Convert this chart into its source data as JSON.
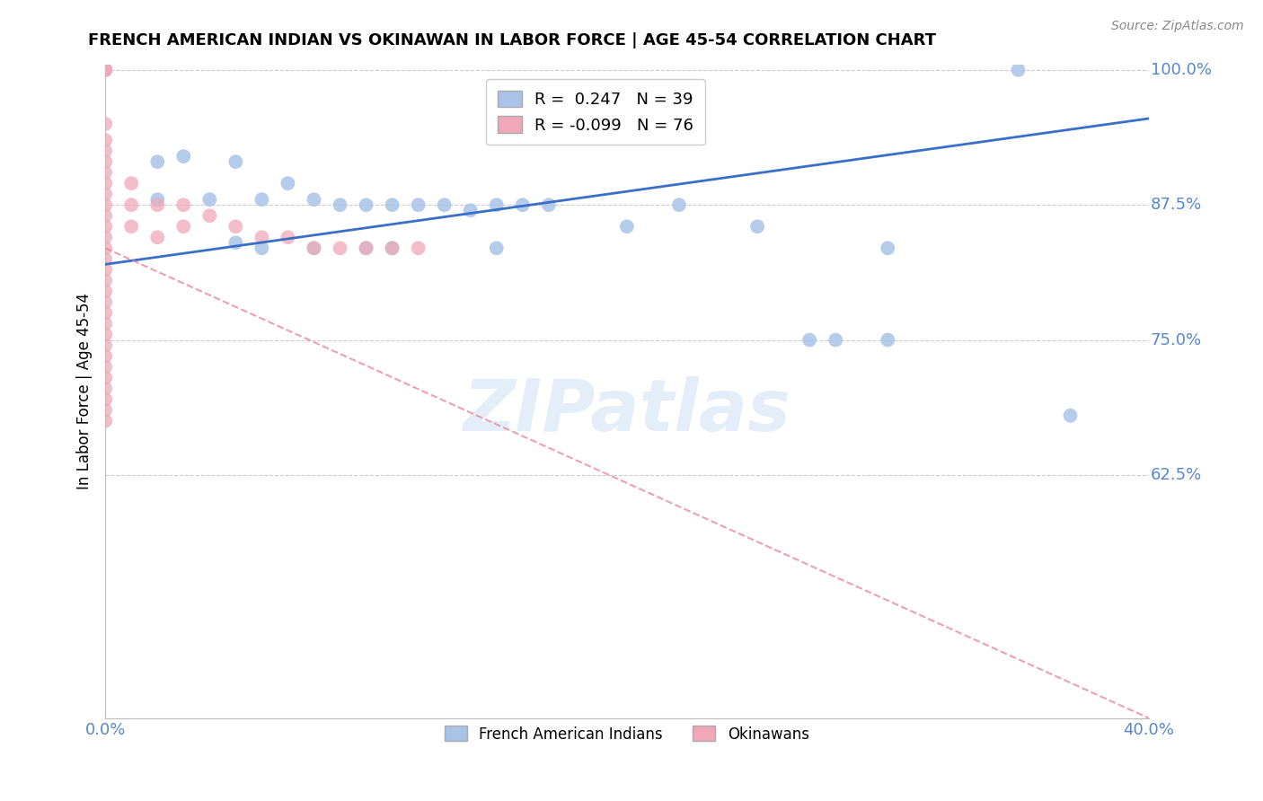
{
  "title": "FRENCH AMERICAN INDIAN VS OKINAWAN IN LABOR FORCE | AGE 45-54 CORRELATION CHART",
  "source": "Source: ZipAtlas.com",
  "ylabel": "In Labor Force | Age 45-54",
  "xlim": [
    0.0,
    0.4
  ],
  "ylim": [
    0.4,
    1.005
  ],
  "xticks": [
    0.0,
    0.05,
    0.1,
    0.15,
    0.2,
    0.25,
    0.3,
    0.35,
    0.4
  ],
  "xtick_labels": [
    "0.0%",
    "",
    "",
    "",
    "",
    "",
    "",
    "",
    "40.0%"
  ],
  "yticks": [
    0.625,
    0.75,
    0.875,
    1.0
  ],
  "ytick_labels": [
    "62.5%",
    "75.0%",
    "87.5%",
    "100.0%"
  ],
  "blue_R": 0.247,
  "blue_N": 39,
  "pink_R": -0.099,
  "pink_N": 76,
  "blue_color": "#aac4e8",
  "pink_color": "#f0a8b8",
  "blue_line_color": "#3a6fc8",
  "pink_line_color": "#e8809a",
  "grid_color": "#cccccc",
  "right_tick_color": "#5588cc",
  "watermark": "ZIPatlas",
  "blue_scatter_x": [
    0.0,
    0.02,
    0.02,
    0.03,
    0.04,
    0.05,
    0.05,
    0.06,
    0.06,
    0.07,
    0.08,
    0.08,
    0.09,
    0.1,
    0.1,
    0.11,
    0.11,
    0.12,
    0.13,
    0.14,
    0.15,
    0.15,
    0.16,
    0.17,
    0.2,
    0.22,
    0.25,
    0.27,
    0.28,
    0.3,
    0.3,
    0.35,
    0.37
  ],
  "blue_scatter_y": [
    1.0,
    0.915,
    0.88,
    0.92,
    0.88,
    0.915,
    0.84,
    0.88,
    0.835,
    0.895,
    0.88,
    0.835,
    0.875,
    0.875,
    0.835,
    0.875,
    0.835,
    0.875,
    0.875,
    0.87,
    0.875,
    0.835,
    0.875,
    0.875,
    0.855,
    0.875,
    0.855,
    0.75,
    0.75,
    0.835,
    0.75,
    1.0,
    0.68
  ],
  "pink_scatter_x": [
    0.0,
    0.0,
    0.0,
    0.0,
    0.0,
    0.0,
    0.0,
    0.0,
    0.0,
    0.0,
    0.0,
    0.0,
    0.0,
    0.0,
    0.0,
    0.0,
    0.0,
    0.0,
    0.0,
    0.0,
    0.0,
    0.0,
    0.0,
    0.0,
    0.0,
    0.0,
    0.0,
    0.0,
    0.0,
    0.0,
    0.01,
    0.01,
    0.01,
    0.02,
    0.02,
    0.03,
    0.03,
    0.04,
    0.05,
    0.06,
    0.07,
    0.08,
    0.09,
    0.1,
    0.11,
    0.12
  ],
  "pink_scatter_y": [
    1.0,
    1.0,
    0.95,
    0.935,
    0.925,
    0.915,
    0.905,
    0.895,
    0.885,
    0.875,
    0.865,
    0.855,
    0.845,
    0.835,
    0.825,
    0.815,
    0.805,
    0.795,
    0.785,
    0.775,
    0.765,
    0.755,
    0.745,
    0.735,
    0.725,
    0.715,
    0.705,
    0.695,
    0.685,
    0.675,
    0.895,
    0.875,
    0.855,
    0.875,
    0.845,
    0.875,
    0.855,
    0.865,
    0.855,
    0.845,
    0.845,
    0.835,
    0.835,
    0.835,
    0.835,
    0.835
  ],
  "blue_line_x0": 0.0,
  "blue_line_x1": 0.4,
  "blue_line_y0": 0.82,
  "blue_line_y1": 0.955,
  "pink_line_x0": 0.0,
  "pink_line_x1": 0.4,
  "pink_line_y0": 0.835,
  "pink_line_y1": 0.4
}
